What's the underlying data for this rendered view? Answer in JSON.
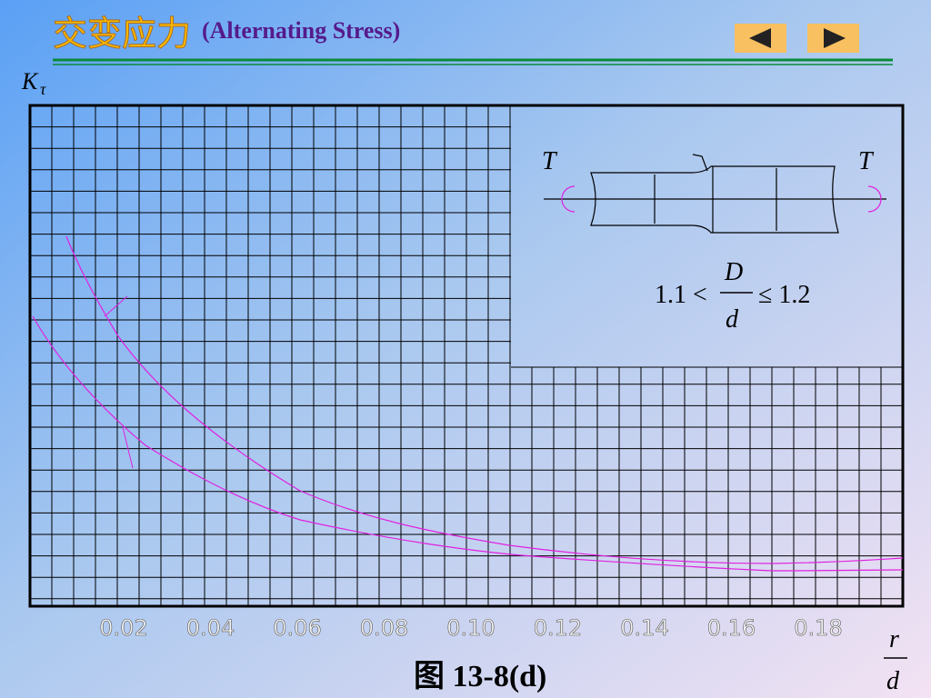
{
  "header": {
    "title_cn": "交变应力",
    "title_en": "(Alternating Stress)"
  },
  "chart_data": {
    "type": "line",
    "y_label": "K",
    "y_label_sub": "τ",
    "x_label_num": "r",
    "x_label_den": "d",
    "xlim": [
      0,
      0.2
    ],
    "xticks": [
      0.02,
      0.04,
      0.06,
      0.08,
      {
        "value": 0.1,
        "label": "0.10"
      },
      0.12,
      0.14,
      0.16,
      0.18
    ],
    "caption": "图 13-8(d)",
    "inset": {
      "torque_left": "T",
      "torque_right": "T",
      "formula_left": "1.1 <",
      "formula_num": "D",
      "formula_den": "d",
      "formula_right": "≤ 1.2"
    }
  }
}
